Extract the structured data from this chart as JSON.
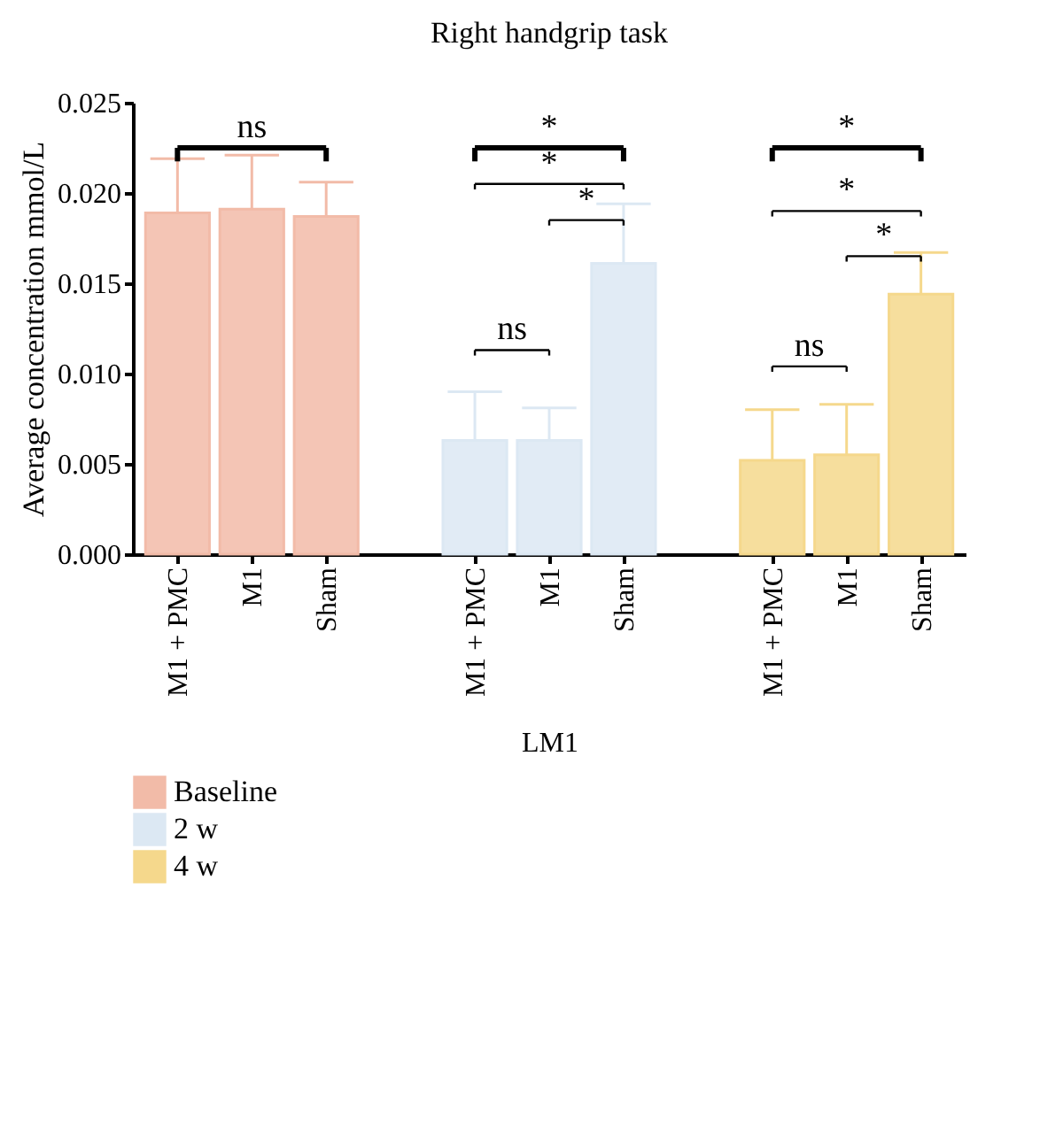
{
  "chart_data": {
    "type": "bar",
    "title": "Right handgrip task",
    "xlabel": "LM1",
    "ylabel": "Average concentration mmol/L",
    "categories": [
      "M1 + PMC",
      "M1",
      "Sham",
      null,
      "M1 + PMC",
      "M1",
      "Sham",
      null,
      "M1 + PMC",
      "M1",
      "Sham"
    ],
    "series": [
      {
        "name": "Baseline",
        "color": "#f2bba8",
        "values": [
          0.0189,
          0.0191,
          0.0187,
          null,
          null,
          null,
          null,
          null,
          null,
          null,
          null
        ],
        "errors": [
          [
            0.0189,
            0.0219
          ],
          [
            0.0191,
            0.0221
          ],
          [
            0.0187,
            0.0206
          ],
          null,
          null,
          null,
          null,
          null,
          null,
          null,
          null
        ]
      },
      {
        "name": "2 w",
        "color": "#dce8f3",
        "values": [
          null,
          null,
          null,
          null,
          0.0063,
          0.0063,
          0.0161,
          null,
          null,
          null,
          null
        ],
        "errors": [
          null,
          null,
          null,
          null,
          [
            0.0063,
            0.009
          ],
          [
            0.0063,
            0.0081
          ],
          [
            0.0161,
            0.0194
          ],
          null,
          null,
          null,
          null
        ]
      },
      {
        "name": "4 w",
        "color": "#f5d88c",
        "values": [
          null,
          null,
          null,
          null,
          null,
          null,
          null,
          null,
          0.0052,
          0.0055,
          0.0144
        ],
        "errors": [
          null,
          null,
          null,
          null,
          null,
          null,
          null,
          null,
          [
            0.0052,
            0.008
          ],
          [
            0.0055,
            0.0083
          ],
          [
            0.0144,
            0.0167
          ]
        ]
      }
    ],
    "ylim": [
      0,
      0.025
    ],
    "yticks": [
      {
        "value": 0,
        "label": "0.000"
      },
      0.005,
      {
        "value": 0.01,
        "label": "0.010"
      },
      0.015,
      {
        "value": 0.02,
        "label": "0.020"
      },
      0.025
    ],
    "grid": false,
    "legend": "bottom left",
    "annotations": [
      "ns",
      "ns",
      "*",
      "*",
      "*",
      "ns",
      "*",
      "*",
      "*"
    ]
  }
}
